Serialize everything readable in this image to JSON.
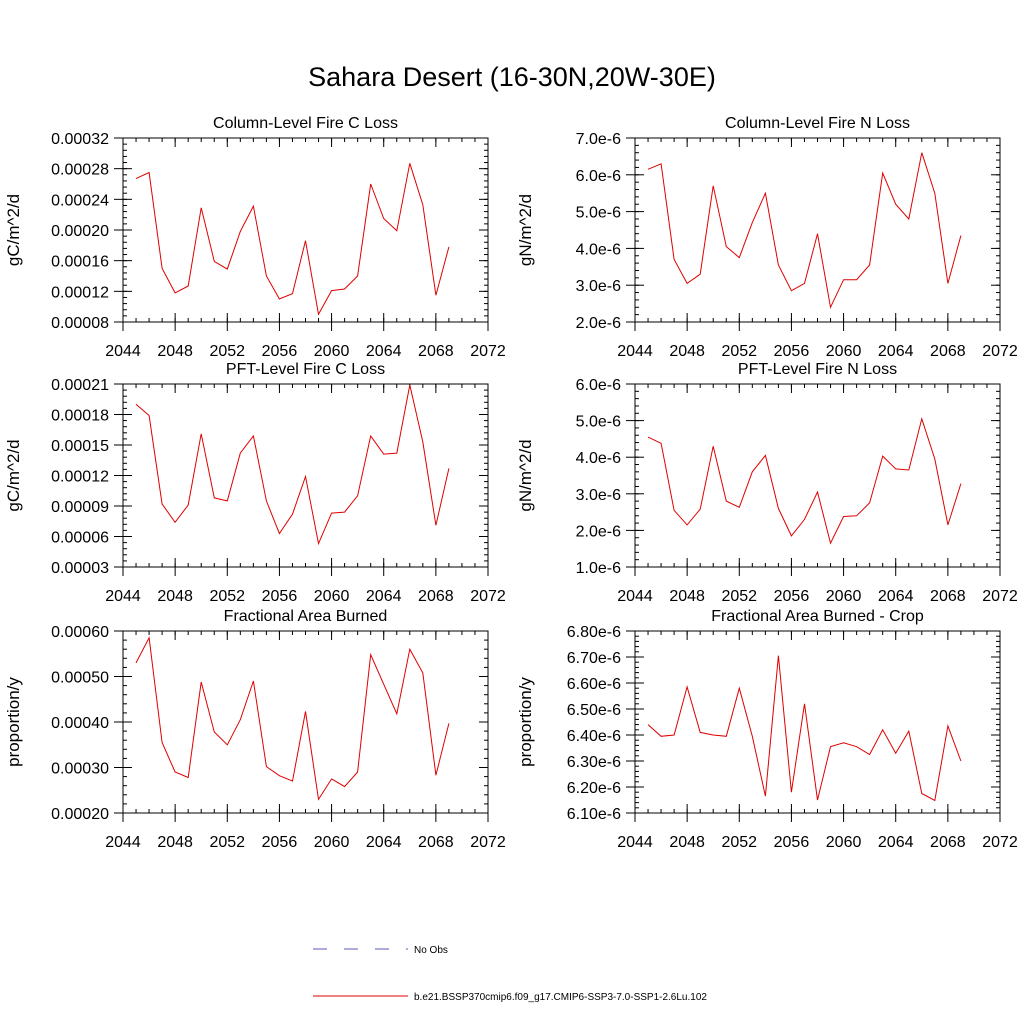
{
  "title": "Sahara Desert (16-30N,20W-30E)",
  "legend": {
    "entries": [
      {
        "label": "No Obs",
        "color": "#5a5ab4",
        "style": "dashed"
      },
      {
        "label": "b.e21.BSSP370cmip6.f09_g17.CMIP6-SSP3-7.0-SSP1-2.6Lu.102",
        "color": "#e00000",
        "style": "solid"
      }
    ]
  },
  "chart_data": [
    {
      "type": "line",
      "title": "Column-Level Fire C Loss",
      "ylabel": "gC/m^2/d",
      "xlim": [
        2044,
        2072
      ],
      "xticks": [
        "2044",
        "2048",
        "2052",
        "2056",
        "2060",
        "2064",
        "2068",
        "2072"
      ],
      "ylim": [
        8e-05,
        0.00032
      ],
      "yticks": [
        "0.00008",
        "0.00012",
        "0.00016",
        "0.00020",
        "0.00024",
        "0.00028",
        "0.00032"
      ],
      "series": [
        {
          "color": "#e00000",
          "x": [
            2045,
            2046,
            2047,
            2048,
            2049,
            2050,
            2051,
            2052,
            2053,
            2054,
            2055,
            2056,
            2057,
            2058,
            2059,
            2060,
            2061,
            2062,
            2063,
            2064,
            2065,
            2066,
            2067,
            2068,
            2069
          ],
          "y": [
            0.000267,
            0.000275,
            0.00015,
            0.000118,
            0.000127,
            0.000229,
            0.000159,
            0.000149,
            0.000198,
            0.000231,
            0.00014,
            0.00011,
            0.000117,
            0.000186,
            9e-05,
            0.000121,
            0.000123,
            0.00014,
            0.00026,
            0.000215,
            0.000199,
            0.000287,
            0.000233,
            0.000115,
            0.000178
          ]
        }
      ]
    },
    {
      "type": "line",
      "title": "Column-Level Fire N Loss",
      "ylabel": "gN/m^2/d",
      "xlim": [
        2044,
        2072
      ],
      "xticks": [
        "2044",
        "2048",
        "2052",
        "2056",
        "2060",
        "2064",
        "2068",
        "2072"
      ],
      "ylim": [
        2e-06,
        7e-06
      ],
      "yticks": [
        "2.0e-6",
        "3.0e-6",
        "4.0e-6",
        "5.0e-6",
        "6.0e-6",
        "7.0e-6"
      ],
      "series": [
        {
          "color": "#e00000",
          "x": [
            2045,
            2046,
            2047,
            2048,
            2049,
            2050,
            2051,
            2052,
            2053,
            2054,
            2055,
            2056,
            2057,
            2058,
            2059,
            2060,
            2061,
            2062,
            2063,
            2064,
            2065,
            2066,
            2067,
            2068,
            2069
          ],
          "y": [
            6.15e-06,
            6.3e-06,
            3.7e-06,
            3.05e-06,
            3.3e-06,
            5.7e-06,
            4.05e-06,
            3.75e-06,
            4.7e-06,
            5.5e-06,
            3.55e-06,
            2.85e-06,
            3.05e-06,
            4.4e-06,
            2.4e-06,
            3.15e-06,
            3.15e-06,
            3.55e-06,
            6.05e-06,
            5.2e-06,
            4.8e-06,
            6.6e-06,
            5.5e-06,
            3.05e-06,
            4.35e-06
          ]
        }
      ]
    },
    {
      "type": "line",
      "title": "PFT-Level Fire C Loss",
      "ylabel": "gC/m^2/d",
      "xlim": [
        2044,
        2072
      ],
      "xticks": [
        "2044",
        "2048",
        "2052",
        "2056",
        "2060",
        "2064",
        "2068",
        "2072"
      ],
      "ylim": [
        3e-05,
        0.00021
      ],
      "yticks": [
        "0.00003",
        "0.00006",
        "0.00009",
        "0.00012",
        "0.00015",
        "0.00018",
        "0.00021"
      ],
      "series": [
        {
          "color": "#e00000",
          "x": [
            2045,
            2046,
            2047,
            2048,
            2049,
            2050,
            2051,
            2052,
            2053,
            2054,
            2055,
            2056,
            2057,
            2058,
            2059,
            2060,
            2061,
            2062,
            2063,
            2064,
            2065,
            2066,
            2067,
            2068,
            2069
          ],
          "y": [
            0.00019,
            0.000179,
            9.2e-05,
            7.4e-05,
            9.1e-05,
            0.000161,
            9.8e-05,
            9.5e-05,
            0.000142,
            0.000159,
            9.5e-05,
            6.3e-05,
            8.2e-05,
            0.000119,
            5.3e-05,
            8.3e-05,
            8.4e-05,
            0.0001,
            0.000159,
            0.000141,
            0.000142,
            0.000209,
            0.000153,
            7.1e-05,
            0.000127
          ]
        }
      ]
    },
    {
      "type": "line",
      "title": "PFT-Level Fire N Loss",
      "ylabel": "gN/m^2/d",
      "xlim": [
        2044,
        2072
      ],
      "xticks": [
        "2044",
        "2048",
        "2052",
        "2056",
        "2060",
        "2064",
        "2068",
        "2072"
      ],
      "ylim": [
        1e-06,
        6e-06
      ],
      "yticks": [
        "1.0e-6",
        "2.0e-6",
        "3.0e-6",
        "4.0e-6",
        "5.0e-6",
        "6.0e-6"
      ],
      "series": [
        {
          "color": "#e00000",
          "x": [
            2045,
            2046,
            2047,
            2048,
            2049,
            2050,
            2051,
            2052,
            2053,
            2054,
            2055,
            2056,
            2057,
            2058,
            2059,
            2060,
            2061,
            2062,
            2063,
            2064,
            2065,
            2066,
            2067,
            2068,
            2069
          ],
          "y": [
            4.55e-06,
            4.38e-06,
            2.55e-06,
            2.15e-06,
            2.58e-06,
            4.3e-06,
            2.8e-06,
            2.63e-06,
            3.6e-06,
            4.05e-06,
            2.6e-06,
            1.85e-06,
            2.3e-06,
            3.05e-06,
            1.65e-06,
            2.38e-06,
            2.4e-06,
            2.75e-06,
            4.03e-06,
            3.68e-06,
            3.65e-06,
            5.05e-06,
            3.95e-06,
            2.15e-06,
            3.28e-06
          ]
        }
      ]
    },
    {
      "type": "line",
      "title": "Fractional Area Burned",
      "ylabel": "proportion/y",
      "xlim": [
        2044,
        2072
      ],
      "xticks": [
        "2044",
        "2048",
        "2052",
        "2056",
        "2060",
        "2064",
        "2068",
        "2072"
      ],
      "ylim": [
        0.0002,
        0.0006
      ],
      "yticks": [
        "0.00020",
        "0.00030",
        "0.00040",
        "0.00050",
        "0.00060"
      ],
      "series": [
        {
          "color": "#e00000",
          "x": [
            2045,
            2046,
            2047,
            2048,
            2049,
            2050,
            2051,
            2052,
            2053,
            2054,
            2055,
            2056,
            2057,
            2058,
            2059,
            2060,
            2061,
            2062,
            2063,
            2064,
            2065,
            2066,
            2067,
            2068,
            2069
          ],
          "y": [
            0.00053,
            0.000585,
            0.000355,
            0.00029,
            0.000278,
            0.000488,
            0.000378,
            0.00035,
            0.000405,
            0.00049,
            0.000302,
            0.000282,
            0.00027,
            0.000423,
            0.00023,
            0.000275,
            0.000258,
            0.00029,
            0.000548,
            0.000483,
            0.000418,
            0.00056,
            0.000508,
            0.000283,
            0.000397
          ]
        }
      ]
    },
    {
      "type": "line",
      "title": "Fractional Area Burned - Crop",
      "ylabel": "proportion/y",
      "xlim": [
        2044,
        2072
      ],
      "xticks": [
        "2044",
        "2048",
        "2052",
        "2056",
        "2060",
        "2064",
        "2068",
        "2072"
      ],
      "ylim": [
        6.1e-06,
        6.8e-06
      ],
      "yticks": [
        "6.10e-6",
        "6.20e-6",
        "6.30e-6",
        "6.40e-6",
        "6.50e-6",
        "6.60e-6",
        "6.70e-6",
        "6.80e-6"
      ],
      "series": [
        {
          "color": "#e00000",
          "x": [
            2045,
            2046,
            2047,
            2048,
            2049,
            2050,
            2051,
            2052,
            2053,
            2054,
            2055,
            2056,
            2057,
            2058,
            2059,
            2060,
            2061,
            2062,
            2063,
            2064,
            2065,
            2066,
            2067,
            2068,
            2069
          ],
          "y": [
            6.44e-06,
            6.395e-06,
            6.4e-06,
            6.585e-06,
            6.41e-06,
            6.4e-06,
            6.395e-06,
            6.58e-06,
            6.395e-06,
            6.165e-06,
            6.705e-06,
            6.18e-06,
            6.52e-06,
            6.15e-06,
            6.355e-06,
            6.37e-06,
            6.355e-06,
            6.325e-06,
            6.42e-06,
            6.33e-06,
            6.415e-06,
            6.175e-06,
            6.148e-06,
            6.435e-06,
            6.3e-06
          ]
        }
      ]
    }
  ]
}
